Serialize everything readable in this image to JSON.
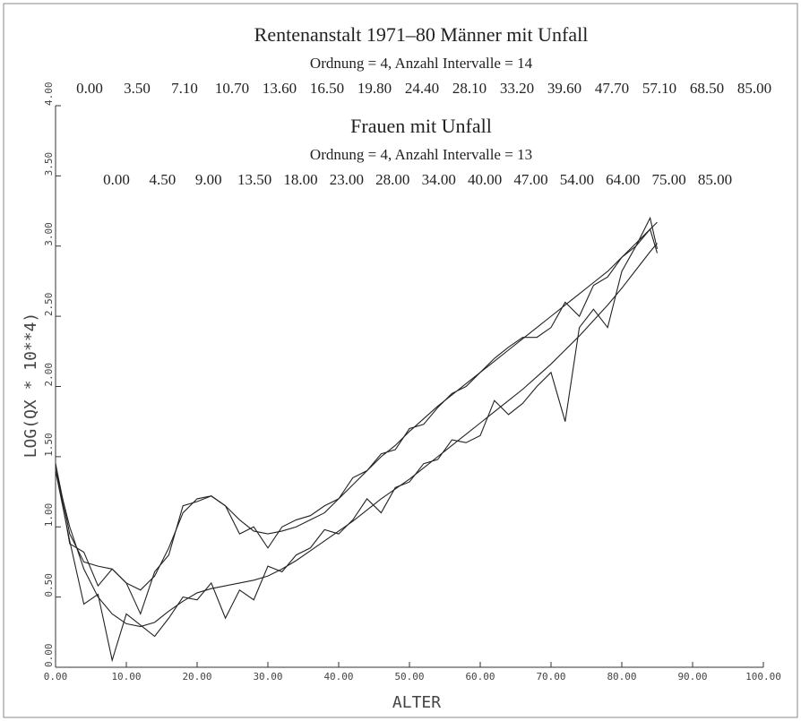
{
  "chart_data": {
    "type": "line",
    "title": "Rentenanstalt 1971–80 Männer mit Unfall",
    "subtitle": "Ordnung = 4, Anzahl Intervalle = 14",
    "knots": [
      "0.00",
      "3.50",
      "7.10",
      "10.70",
      "13.60",
      "16.50",
      "19.80",
      "24.40",
      "28.10",
      "33.20",
      "39.60",
      "47.70",
      "57.10",
      "68.50",
      "85.00"
    ],
    "title2": "Frauen mit Unfall",
    "subtitle2": "Ordnung = 4, Anzahl Intervalle = 13",
    "knots2": [
      "0.00",
      "4.50",
      "9.00",
      "13.50",
      "18.00",
      "23.00",
      "28.00",
      "34.00",
      "40.00",
      "47.00",
      "54.00",
      "64.00",
      "75.00",
      "85.00"
    ],
    "xlabel": "ALTER",
    "ylabel": "LOG(QX * 10**4)",
    "xlim": [
      0,
      100
    ],
    "xticks": [
      {
        "value": 0,
        "label": "0.00"
      },
      {
        "value": 10,
        "label": "10.00"
      },
      {
        "value": 20,
        "label": "20.00"
      },
      {
        "value": 30,
        "label": "30.00"
      },
      {
        "value": 40,
        "label": "40.00"
      },
      {
        "value": 50,
        "label": "50.00"
      },
      {
        "value": 60,
        "label": "60.00"
      },
      {
        "value": 70,
        "label": "70.00"
      },
      {
        "value": 80,
        "label": "80.00"
      },
      {
        "value": 90,
        "label": "90.00"
      },
      {
        "value": 100,
        "label": "100.00"
      }
    ],
    "ylim": [
      0,
      4
    ],
    "yticks": [
      {
        "value": 0,
        "label": "0.00"
      },
      {
        "value": 0.5,
        "label": "0.50"
      },
      {
        "value": 1,
        "label": "1.00"
      },
      {
        "value": 1.5,
        "label": "1.50"
      },
      {
        "value": 2,
        "label": "2.00"
      },
      {
        "value": 2.5,
        "label": "2.50"
      },
      {
        "value": 3,
        "label": "3.00"
      },
      {
        "value": 3.5,
        "label": "3.50"
      },
      {
        "value": 4,
        "label": "4.00"
      }
    ],
    "x": [
      0,
      2,
      4,
      6,
      8,
      10,
      12,
      14,
      16,
      18,
      20,
      22,
      24,
      26,
      28,
      30,
      32,
      34,
      36,
      38,
      40,
      42,
      44,
      46,
      48,
      50,
      52,
      54,
      56,
      58,
      60,
      62,
      64,
      66,
      68,
      70,
      72,
      74,
      76,
      78,
      80,
      82,
      84,
      85
    ],
    "series": [
      {
        "color": "#222222",
        "values": [
          1.45,
          0.88,
          0.82,
          0.58,
          0.7,
          0.6,
          0.38,
          0.68,
          0.8,
          1.15,
          1.18,
          1.22,
          1.15,
          0.95,
          1.0,
          0.85,
          1.0,
          1.05,
          1.08,
          1.15,
          1.2,
          1.35,
          1.4,
          1.52,
          1.55,
          1.7,
          1.73,
          1.85,
          1.95,
          2.0,
          2.1,
          2.2,
          2.28,
          2.35,
          2.35,
          2.42,
          2.6,
          2.5,
          2.72,
          2.78,
          2.92,
          3.0,
          3.2,
          2.98
        ]
      },
      {
        "color": "#222222",
        "values": [
          1.45,
          0.95,
          0.75,
          0.72,
          0.7,
          0.6,
          0.55,
          0.65,
          0.85,
          1.1,
          1.2,
          1.22,
          1.15,
          1.05,
          0.97,
          0.95,
          0.97,
          1.0,
          1.05,
          1.1,
          1.2,
          1.3,
          1.4,
          1.5,
          1.58,
          1.68,
          1.77,
          1.86,
          1.94,
          2.02,
          2.1,
          2.18,
          2.26,
          2.34,
          2.42,
          2.5,
          2.58,
          2.66,
          2.74,
          2.82,
          2.92,
          3.02,
          3.12,
          3.17
        ]
      },
      {
        "color": "#222222",
        "values": [
          1.4,
          0.9,
          0.45,
          0.52,
          0.05,
          0.38,
          0.3,
          0.22,
          0.35,
          0.5,
          0.48,
          0.6,
          0.35,
          0.55,
          0.48,
          0.72,
          0.68,
          0.8,
          0.85,
          0.98,
          0.95,
          1.05,
          1.2,
          1.1,
          1.28,
          1.32,
          1.45,
          1.48,
          1.62,
          1.6,
          1.65,
          1.9,
          1.8,
          1.88,
          2.0,
          2.1,
          1.75,
          2.42,
          2.55,
          2.42,
          2.82,
          3.0,
          3.12,
          2.95
        ]
      },
      {
        "color": "#222222",
        "values": [
          1.4,
          1.0,
          0.7,
          0.5,
          0.38,
          0.31,
          0.29,
          0.32,
          0.4,
          0.47,
          0.53,
          0.56,
          0.58,
          0.6,
          0.62,
          0.65,
          0.7,
          0.76,
          0.83,
          0.9,
          0.97,
          1.04,
          1.12,
          1.2,
          1.27,
          1.34,
          1.42,
          1.5,
          1.58,
          1.66,
          1.74,
          1.82,
          1.9,
          1.98,
          2.07,
          2.16,
          2.26,
          2.36,
          2.47,
          2.58,
          2.7,
          2.83,
          2.96,
          3.02
        ]
      }
    ]
  }
}
